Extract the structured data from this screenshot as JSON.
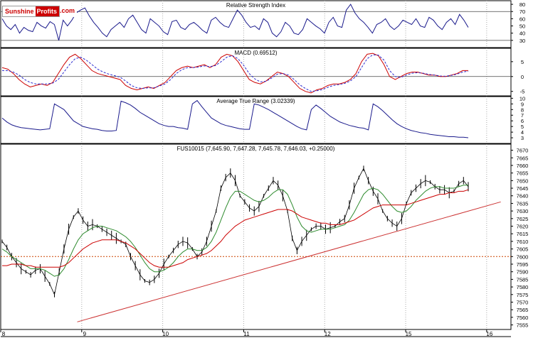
{
  "logo": {
    "part1": "Sunshine",
    "part2": "Profits",
    "part3": ".com"
  },
  "chart_data": [
    {
      "type": "line",
      "title": "Relative Strength Index",
      "ylim": [
        20,
        85
      ],
      "yticks": [
        30,
        40,
        50,
        60,
        70,
        80
      ],
      "ref_lines": [
        30,
        70
      ],
      "series": [
        {
          "color": "#1a1a8c",
          "values": [
            60,
            50,
            45,
            52,
            40,
            48,
            44,
            42,
            55,
            50,
            47,
            56,
            52,
            30,
            58,
            50,
            58,
            68,
            72,
            75,
            64,
            55,
            48,
            40,
            35,
            45,
            50,
            55,
            48,
            60,
            65,
            55,
            45,
            40,
            60,
            55,
            50,
            42,
            38,
            56,
            58,
            48,
            45,
            52,
            55,
            50,
            44,
            40,
            58,
            62,
            55,
            50,
            48,
            60,
            72,
            65,
            55,
            48,
            50,
            45,
            60,
            55,
            40,
            35,
            42,
            55,
            50,
            40,
            38,
            45,
            60,
            55,
            50,
            46,
            40,
            55,
            62,
            50,
            48,
            72,
            80,
            68,
            60,
            55,
            48,
            40,
            52,
            55,
            60,
            50,
            45,
            50,
            58,
            55,
            52,
            60,
            50,
            48,
            62,
            58,
            50,
            45,
            55,
            60,
            52,
            66,
            58,
            48
          ]
        }
      ]
    },
    {
      "type": "line",
      "title": "MACD (0.69512)",
      "ylim": [
        -6.5,
        9.5
      ],
      "yticks": [
        -5,
        0,
        5
      ],
      "ref_lines": [
        0
      ],
      "series": [
        {
          "color": "#cc0000",
          "values": [
            3,
            2.5,
            1,
            -1,
            -2.5,
            -3.5,
            -3,
            -2.5,
            -3,
            -2,
            1,
            4,
            6.5,
            7.5,
            6,
            4,
            2,
            1,
            0.5,
            0,
            -0.5,
            -1,
            -3,
            -4,
            -4.5,
            -4,
            -3.5,
            -4,
            -3,
            -2,
            0,
            2,
            3,
            3.5,
            3,
            3.5,
            4,
            3,
            4,
            6.5,
            7.5,
            7,
            5,
            2,
            -1,
            -2,
            -2.5,
            -1.5,
            0,
            1.5,
            1,
            0,
            -2,
            -4,
            -5,
            -5.5,
            -4.5,
            -4,
            -3,
            -2.5,
            -2.5,
            -2,
            -1,
            1,
            5,
            7.5,
            7.8,
            7,
            4,
            0,
            -1,
            0,
            1,
            1.5,
            1.5,
            1,
            0.5,
            0.5,
            0,
            0,
            0.5,
            1,
            2,
            2
          ]
        },
        {
          "color": "#2b2bd0",
          "values": [
            2,
            2,
            1.5,
            0.5,
            -1,
            -2,
            -2.5,
            -2.5,
            -2.5,
            -2.2,
            -1,
            1.5,
            4,
            6,
            6.5,
            5.5,
            4,
            2.5,
            1.5,
            0.8,
            0.3,
            -0.2,
            -1.5,
            -3,
            -3.8,
            -4,
            -3.8,
            -3.8,
            -3.2,
            -2.5,
            -1,
            1,
            2.3,
            3,
            3,
            3.2,
            3.6,
            3.3,
            3.7,
            5,
            6.5,
            7,
            6,
            3.8,
            1,
            -0.8,
            -1.8,
            -1.6,
            -0.5,
            0.8,
            1,
            0.5,
            -1,
            -2.8,
            -4,
            -5,
            -4.8,
            -4.4,
            -3.6,
            -3,
            -2.7,
            -2.3,
            -1.5,
            0,
            3,
            6,
            7.3,
            7.2,
            5.5,
            2,
            0,
            -0.3,
            0.5,
            1.1,
            1.3,
            1.1,
            0.7,
            0.5,
            0.2,
            0.1,
            0.4,
            0.8,
            1.5,
            1.8
          ]
        }
      ]
    },
    {
      "type": "line",
      "title": "Average True Range (3.02339)",
      "ylim": [
        2,
        10.3
      ],
      "yticks": [
        3,
        4,
        5,
        6,
        7,
        8,
        9,
        10
      ],
      "series": [
        {
          "color": "#1a1a8c",
          "values": [
            6.5,
            5.8,
            5.3,
            5,
            4.8,
            4.7,
            4.6,
            4.5,
            4.4,
            4.5,
            4.6,
            9,
            8.5,
            8,
            7,
            6,
            5.5,
            5,
            4.8,
            4.6,
            4.5,
            4.3,
            4.2,
            4.2,
            4.3,
            9.5,
            9.2,
            8.8,
            8.2,
            7.5,
            7,
            6.5,
            6,
            5.5,
            5.2,
            5,
            5,
            4.8,
            4.7,
            4.5,
            9,
            9.6,
            8.5,
            7.5,
            6.5,
            6,
            5.5,
            5.2,
            5,
            4.8,
            4.6,
            4.5,
            4.5,
            9,
            8.8,
            8.4,
            8,
            7.5,
            7,
            6.5,
            6,
            5.5,
            5,
            4.6,
            4.4,
            8,
            8.8,
            8.2,
            7.5,
            6.8,
            6.3,
            5.8,
            5.5,
            5.2,
            5,
            4.8,
            4.7,
            4.4,
            9,
            8.5,
            7.8,
            7,
            6.2,
            5.5,
            5,
            4.6,
            4.3,
            4.1,
            3.9,
            3.8,
            3.6,
            3.5,
            3.4,
            3.3,
            3.2,
            3.2,
            3.1,
            3.1,
            3
          ]
        }
      ]
    },
    {
      "type": "line",
      "title": "FUS10015 (7,645.90, 7,647.28, 7,645.78, 7,646.03, +0.25000)",
      "ylim": [
        7552,
        7674
      ],
      "yticks": [
        7555,
        7560,
        7565,
        7570,
        7575,
        7580,
        7585,
        7590,
        7595,
        7600,
        7605,
        7610,
        7615,
        7620,
        7625,
        7630,
        7635,
        7640,
        7645,
        7650,
        7655,
        7660,
        7665,
        7670
      ],
      "x_labels": [
        {
          "label": "8",
          "x": 0
        },
        {
          "label": "9",
          "x": 1
        },
        {
          "label": "10",
          "x": 2
        },
        {
          "label": "11",
          "x": 3
        },
        {
          "label": "12",
          "x": 4
        },
        {
          "label": "15",
          "x": 5
        },
        {
          "label": "16",
          "x": 6
        }
      ],
      "xlim": [
        0,
        6.3
      ],
      "series": [
        {
          "name": "price",
          "color": "#000000",
          "values": [
            7610,
            7606,
            7600,
            7596,
            7592,
            7590,
            7588,
            7591,
            7592,
            7587,
            7582,
            7575,
            7590,
            7605,
            7618,
            7626,
            7630,
            7624,
            7620,
            7621,
            7620,
            7618,
            7616,
            7614,
            7612,
            7610,
            7608,
            7600,
            7594,
            7588,
            7584,
            7583,
            7585,
            7589,
            7595,
            7600,
            7604,
            7608,
            7610,
            7609,
            7605,
            7600,
            7603,
            7610,
            7620,
            7630,
            7645,
            7652,
            7655,
            7650,
            7640,
            7636,
            7632,
            7630,
            7633,
            7640,
            7645,
            7650,
            7647,
            7640,
            7630,
            7612,
            7604,
            7610,
            7614,
            7618,
            7620,
            7620,
            7618,
            7619,
            7620,
            7623,
            7625,
            7634,
            7645,
            7652,
            7658,
            7650,
            7643,
            7638,
            7630,
            7625,
            7622,
            7620,
            7625,
            7635,
            7642,
            7645,
            7648,
            7650,
            7649,
            7646,
            7644,
            7644,
            7642,
            7643,
            7648,
            7650,
            7646
          ]
        },
        {
          "name": "ma-short",
          "color": "#2e8b2e",
          "values": [
            7605,
            7603,
            7600,
            7598,
            7596,
            7594,
            7592,
            7592,
            7592,
            7591,
            7589,
            7587,
            7588,
            7592,
            7598,
            7605,
            7611,
            7615,
            7617,
            7619,
            7620,
            7620,
            7619,
            7618,
            7617,
            7615,
            7613,
            7610,
            7606,
            7601,
            7596,
            7592,
            7590,
            7590,
            7591,
            7593,
            7596,
            7600,
            7603,
            7605,
            7605,
            7604,
            7604,
            7606,
            7610,
            7616,
            7624,
            7632,
            7639,
            7643,
            7643,
            7641,
            7639,
            7637,
            7636,
            7637,
            7639,
            7642,
            7644,
            7644,
            7641,
            7634,
            7626,
            7620,
            7617,
            7616,
            7617,
            7618,
            7618,
            7618,
            7619,
            7620,
            7621,
            7624,
            7629,
            7635,
            7641,
            7644,
            7645,
            7644,
            7641,
            7637,
            7633,
            7630,
            7629,
            7630,
            7633,
            7637,
            7640,
            7643,
            7645,
            7646,
            7646,
            7645,
            7645,
            7645,
            7646,
            7647,
            7647
          ]
        },
        {
          "name": "ma-long",
          "color": "#cc0000",
          "values": [
            7594,
            7594,
            7595,
            7595,
            7595,
            7594,
            7594,
            7593,
            7593,
            7593,
            7593,
            7593,
            7593,
            7594,
            7596,
            7599,
            7602,
            7605,
            7607,
            7609,
            7610,
            7611,
            7611,
            7611,
            7611,
            7610,
            7609,
            7607,
            7605,
            7602,
            7599,
            7596,
            7594,
            7593,
            7593,
            7593,
            7594,
            7595,
            7596,
            7598,
            7599,
            7600,
            7601,
            7602,
            7604,
            7607,
            7610,
            7614,
            7617,
            7620,
            7622,
            7624,
            7625,
            7626,
            7627,
            7628,
            7629,
            7630,
            7631,
            7631,
            7631,
            7630,
            7628,
            7626,
            7625,
            7624,
            7623,
            7622,
            7622,
            7621,
            7621,
            7621,
            7622,
            7623,
            7624,
            7626,
            7628,
            7630,
            7632,
            7633,
            7634,
            7634,
            7634,
            7634,
            7634,
            7634,
            7635,
            7636,
            7637,
            7638,
            7639,
            7640,
            7641,
            7641,
            7642,
            7642,
            7643,
            7643,
            7644
          ]
        }
      ],
      "hlines": [
        {
          "y": 7600,
          "color": "#cc4400",
          "style": "dotted"
        }
      ],
      "trendline": {
        "from": [
          7557,
          0.15
        ],
        "to": [
          7636,
          0.98
        ],
        "color": "#cc3333"
      }
    }
  ]
}
